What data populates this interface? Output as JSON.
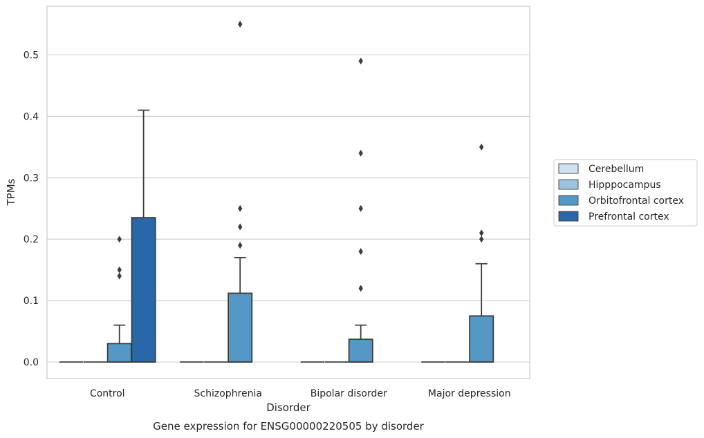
{
  "chart_data": {
    "type": "box",
    "caption": "Gene expression for ENSG00000220505 by disorder",
    "xlabel": "Disorder",
    "ylabel": "TPMs",
    "ylim": [
      -0.027,
      0.58
    ],
    "yticks": [
      "0.0",
      "0.1",
      "0.2",
      "0.3",
      "0.4",
      "0.5"
    ],
    "grid": "horizontal",
    "legend_placement": "right",
    "categories": [
      "Control",
      "Schizophrenia",
      "Bipolar disorder",
      "Major depression"
    ],
    "series": [
      {
        "name": "Cerebellum",
        "color": "#d1e2f2",
        "boxes": [
          {
            "q1": 0,
            "median": 0,
            "q3": 0,
            "whislo": 0,
            "whishi": 0,
            "fliers": []
          },
          {
            "q1": 0,
            "median": 0,
            "q3": 0,
            "whislo": 0,
            "whishi": 0,
            "fliers": []
          },
          {
            "q1": 0,
            "median": 0,
            "q3": 0,
            "whislo": 0,
            "whishi": 0,
            "fliers": []
          },
          {
            "q1": 0,
            "median": 0,
            "q3": 0,
            "whislo": 0,
            "whishi": 0,
            "fliers": []
          }
        ]
      },
      {
        "name": "Hipppocampus",
        "color": "#9dc4df",
        "boxes": [
          {
            "q1": 0,
            "median": 0,
            "q3": 0,
            "whislo": 0,
            "whishi": 0,
            "fliers": []
          },
          {
            "q1": 0,
            "median": 0,
            "q3": 0,
            "whislo": 0,
            "whishi": 0,
            "fliers": []
          },
          {
            "q1": 0,
            "median": 0,
            "q3": 0,
            "whislo": 0,
            "whishi": 0,
            "fliers": []
          },
          {
            "q1": 0,
            "median": 0,
            "q3": 0,
            "whislo": 0,
            "whishi": 0,
            "fliers": []
          }
        ]
      },
      {
        "name": "Orbitofrontal cortex",
        "color": "#5597c5",
        "boxes": [
          {
            "q1": 0,
            "median": 0,
            "q3": 0.03,
            "whislo": 0,
            "whishi": 0.06,
            "fliers": [
              0.14,
              0.15,
              0.2
            ]
          },
          {
            "q1": 0,
            "median": 0,
            "q3": 0.112,
            "whislo": 0,
            "whishi": 0.17,
            "fliers": [
              0.19,
              0.22,
              0.25,
              0.55
            ]
          },
          {
            "q1": 0,
            "median": 0,
            "q3": 0.037,
            "whislo": 0,
            "whishi": 0.06,
            "fliers": [
              0.12,
              0.18,
              0.25,
              0.34,
              0.49
            ]
          },
          {
            "q1": 0,
            "median": 0,
            "q3": 0.075,
            "whislo": 0,
            "whishi": 0.16,
            "fliers": [
              0.2,
              0.21,
              0.35
            ]
          }
        ]
      },
      {
        "name": "Prefrontal cortex",
        "color": "#2967a8",
        "boxes": [
          {
            "q1": 0,
            "median": 0,
            "q3": 0.235,
            "whislo": 0,
            "whishi": 0.41,
            "fliers": []
          },
          null,
          null,
          null
        ]
      }
    ]
  }
}
